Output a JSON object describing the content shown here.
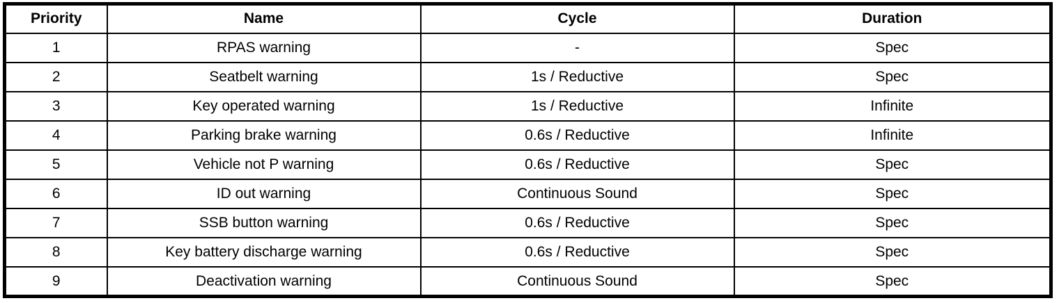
{
  "table": {
    "columns": {
      "priority": "Priority",
      "name": "Name",
      "cycle": "Cycle",
      "duration": "Duration"
    },
    "rows": [
      {
        "priority": "1",
        "name": "RPAS warning",
        "cycle": "-",
        "duration": "Spec"
      },
      {
        "priority": "2",
        "name": "Seatbelt warning",
        "cycle": "1s / Reductive",
        "duration": "Spec"
      },
      {
        "priority": "3",
        "name": "Key operated warning",
        "cycle": "1s / Reductive",
        "duration": "Infinite"
      },
      {
        "priority": "4",
        "name": "Parking brake warning",
        "cycle": "0.6s / Reductive",
        "duration": "Infinite"
      },
      {
        "priority": "5",
        "name": "Vehicle not P warning",
        "cycle": "0.6s / Reductive",
        "duration": "Spec"
      },
      {
        "priority": "6",
        "name": "ID out warning",
        "cycle": "Continuous Sound",
        "duration": "Spec"
      },
      {
        "priority": "7",
        "name": "SSB button warning",
        "cycle": "0.6s / Reductive",
        "duration": "Spec"
      },
      {
        "priority": "8",
        "name": "Key battery discharge warning",
        "cycle": "0.6s / Reductive",
        "duration": "Spec"
      },
      {
        "priority": "9",
        "name": "Deactivation warning",
        "cycle": "Continuous Sound",
        "duration": "Spec"
      }
    ]
  },
  "colors": {
    "border": "#000000",
    "background": "#ffffff",
    "text": "#000000"
  }
}
